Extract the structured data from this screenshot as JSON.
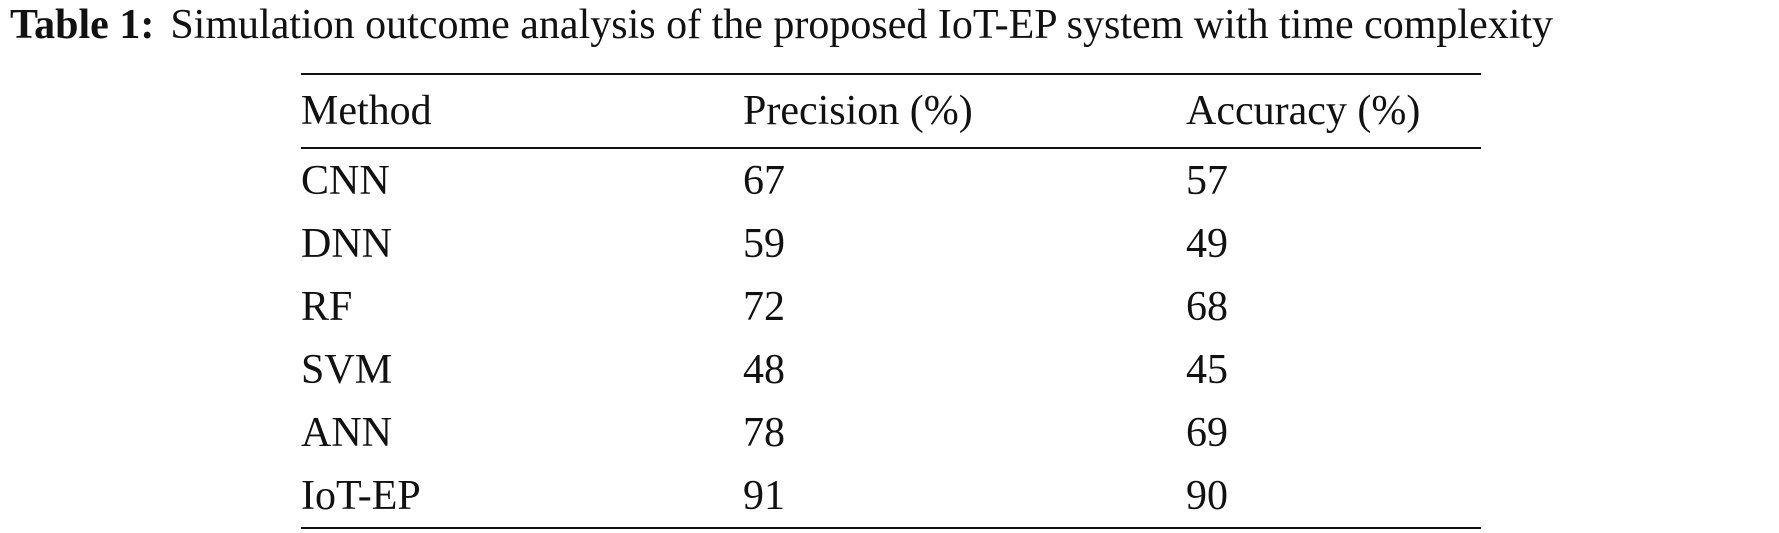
{
  "caption": {
    "label": "Table 1:",
    "text": "Simulation outcome analysis of the proposed IoT-EP system with time complexity"
  },
  "table": {
    "header": [
      "Method",
      "Precision (%)",
      "Accuracy (%)"
    ],
    "rows": [
      [
        "CNN",
        67,
        57
      ],
      [
        "DNN",
        59,
        49
      ],
      [
        "RF",
        72,
        68
      ],
      [
        "SVM",
        48,
        45
      ],
      [
        "ANN",
        78,
        69
      ],
      [
        "IoT-EP",
        91,
        90
      ]
    ]
  }
}
